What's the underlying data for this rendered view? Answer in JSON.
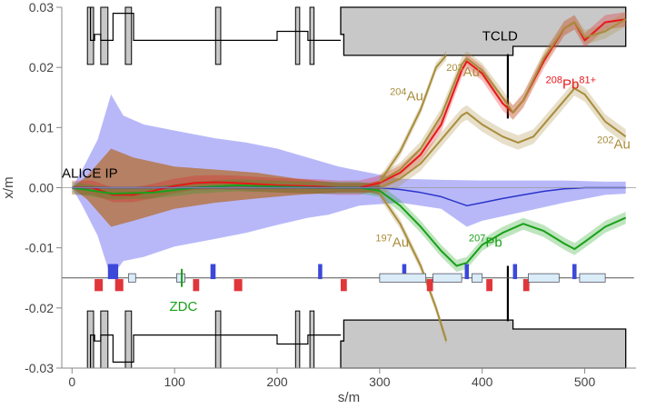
{
  "chart_data": {
    "type": "line",
    "xlabel": "s/m",
    "ylabel": "x/m",
    "xlim": [
      -10,
      550
    ],
    "ylim": [
      -0.03,
      0.03
    ],
    "x_ticks": [
      0,
      100,
      200,
      300,
      400,
      500
    ],
    "x_tick_labels": [
      "0",
      "100",
      "200",
      "300",
      "400",
      "500"
    ],
    "y_ticks": [
      -0.03,
      -0.02,
      -0.01,
      0.0,
      0.01,
      0.02,
      0.03
    ],
    "y_tick_labels": [
      "-0.03",
      "-0.02",
      "-0.01",
      "0.00",
      "0.01",
      "0.02",
      "0.03"
    ],
    "grid": false,
    "colors": {
      "pb208": "#e8171b",
      "pb207": "#1aa01a",
      "au": "#a88d3c",
      "beam": "#2b34c8",
      "envelope": "#8c8cf5",
      "aperture_fill": "#c8c8c8",
      "aperture_line": "#000000"
    },
    "series": [
      {
        "name": "208Pb81+",
        "color": "#e8171b",
        "x": [
          0,
          20,
          40,
          60,
          80,
          100,
          120,
          140,
          160,
          180,
          200,
          220,
          240,
          260,
          280,
          300,
          320,
          340,
          360,
          380,
          385,
          400,
          420,
          430,
          440,
          460,
          480,
          490,
          500,
          520,
          540
        ],
        "y": [
          0.0,
          0.0,
          -0.0012,
          -0.0012,
          -0.0005,
          0.0003,
          0.0008,
          0.0009,
          0.0008,
          0.0006,
          0.0004,
          0.0003,
          0.0002,
          0.0,
          0.0,
          0.0008,
          0.0025,
          0.0055,
          0.0105,
          0.0195,
          0.021,
          0.019,
          0.014,
          0.0125,
          0.0145,
          0.021,
          0.0265,
          0.0275,
          0.0245,
          0.0275,
          0.028
        ]
      },
      {
        "name": "207Pb",
        "color": "#1aa01a",
        "x": [
          0,
          40,
          80,
          120,
          160,
          200,
          240,
          280,
          300,
          320,
          340,
          360,
          375,
          385,
          400,
          420,
          440,
          460,
          480,
          490,
          500,
          520,
          540
        ],
        "y": [
          0.0,
          -0.001,
          -0.0008,
          0.0,
          0.0004,
          0.0002,
          0.0,
          0.0,
          -0.0005,
          -0.003,
          -0.0065,
          -0.0105,
          -0.013,
          -0.0125,
          -0.0095,
          -0.0075,
          -0.006,
          -0.0072,
          -0.0093,
          -0.0102,
          -0.009,
          -0.0065,
          -0.005
        ]
      },
      {
        "name": "203Au",
        "color": "#a88d3c",
        "x": [
          300,
          320,
          340,
          360,
          380,
          385,
          400,
          420,
          430,
          440,
          460,
          480,
          490,
          500,
          520,
          540
        ],
        "y": [
          0.001,
          0.003,
          0.0065,
          0.012,
          0.0205,
          0.0215,
          0.0195,
          0.015,
          0.0125,
          0.0145,
          0.0215,
          0.0265,
          0.0275,
          0.025,
          0.026,
          0.028
        ]
      },
      {
        "name": "204Au",
        "color": "#a88d3c",
        "x": [
          300,
          320,
          340,
          355,
          365
        ],
        "y": [
          0.001,
          0.006,
          0.013,
          0.02,
          0.022
        ]
      },
      {
        "name": "202Au",
        "color": "#a88d3c",
        "x": [
          300,
          320,
          340,
          360,
          380,
          385,
          400,
          420,
          435,
          450,
          470,
          490,
          500,
          520,
          540
        ],
        "y": [
          0.0,
          0.0015,
          0.004,
          0.008,
          0.012,
          0.0125,
          0.0105,
          0.0085,
          0.0075,
          0.0085,
          0.0125,
          0.0165,
          0.0155,
          0.011,
          0.0085
        ]
      },
      {
        "name": "197Au",
        "color": "#a88d3c",
        "x": [
          300,
          320,
          340,
          355,
          365
        ],
        "y": [
          -0.001,
          -0.006,
          -0.013,
          -0.02,
          -0.0255
        ]
      },
      {
        "name": "",
        "color": "#2b34c8",
        "x": [
          0,
          100,
          200,
          260,
          300,
          320,
          340,
          360,
          385,
          400,
          420,
          440,
          460,
          480,
          500,
          520,
          540
        ],
        "y": [
          0.0,
          0.0,
          0.0,
          0.0,
          0.0,
          -0.0003,
          -0.0008,
          -0.0015,
          -0.003,
          -0.0025,
          -0.0018,
          -0.0012,
          -0.0006,
          -0.0002,
          0.0,
          0.0,
          0.0
        ]
      }
    ],
    "annotations": [
      {
        "id": "alice",
        "text": "ALICE IP",
        "sup": "",
        "x": -10,
        "y": 0.0017,
        "color": "#000000"
      },
      {
        "id": "tcld",
        "text": "TCLD",
        "sup": "",
        "x": 400,
        "y": 0.0245,
        "color": "#000000"
      },
      {
        "id": "zdc",
        "text": "ZDC",
        "sup": "",
        "x": 95,
        "y": -0.0205,
        "color": "#1aa01a"
      },
      {
        "id": "pb208",
        "text": "Pb",
        "sup": "208",
        "sup2": "81+",
        "x": 462,
        "y": 0.0165,
        "color": "#e8171b"
      },
      {
        "id": "au203",
        "text": "Au",
        "sup": "203",
        "x": 365,
        "y": 0.0185,
        "color": "#a88d3c"
      },
      {
        "id": "au204",
        "text": "Au",
        "sup": "204",
        "x": 310,
        "y": 0.0145,
        "color": "#a88d3c"
      },
      {
        "id": "au202",
        "text": "Au",
        "sup": "202",
        "x": 512,
        "y": 0.0065,
        "color": "#a88d3c"
      },
      {
        "id": "au197",
        "text": "Au",
        "sup": "197",
        "x": 296,
        "y": -0.0098,
        "color": "#a88d3c"
      },
      {
        "id": "pb207",
        "text": "Pb",
        "sup": "207",
        "x": 387,
        "y": -0.0098,
        "color": "#1aa01a"
      }
    ]
  }
}
